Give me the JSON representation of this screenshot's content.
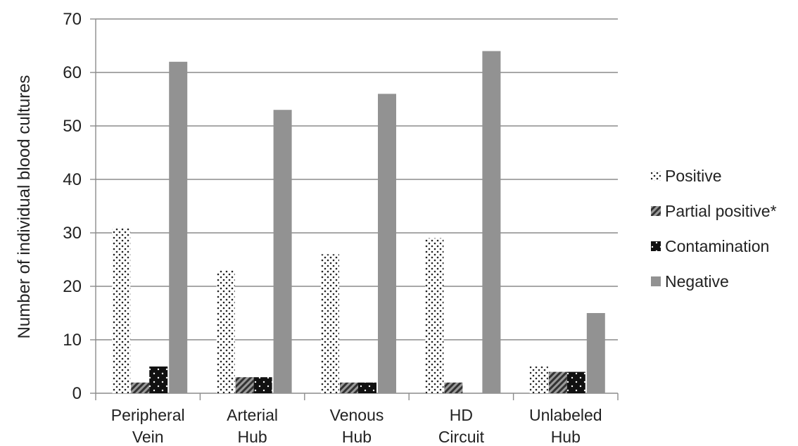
{
  "chart_data": {
    "type": "bar",
    "categories": [
      [
        "Peripheral",
        "Vein"
      ],
      [
        "Arterial",
        "Hub"
      ],
      [
        "Venous",
        "Hub"
      ],
      [
        "HD",
        "Circuit"
      ],
      [
        "Unlabeled",
        "Hub"
      ]
    ],
    "series": [
      {
        "name": "Positive",
        "values": [
          31,
          23,
          26,
          29,
          5
        ],
        "pattern": "dots",
        "color": "#ffffff"
      },
      {
        "name": "Partial positive*",
        "values": [
          2,
          3,
          2,
          2,
          4
        ],
        "pattern": "hatch",
        "color": "#666666"
      },
      {
        "name": "Contamination",
        "values": [
          5,
          3,
          2,
          0,
          4
        ],
        "pattern": "dark-dots",
        "color": "#111111"
      },
      {
        "name": "Negative",
        "values": [
          62,
          53,
          56,
          64,
          15
        ],
        "pattern": "solid",
        "color": "#929292"
      }
    ],
    "xlabel": "",
    "ylabel": "Number of individual blood cultures",
    "ylim": [
      0,
      70
    ],
    "yticks": [
      0,
      10,
      20,
      30,
      40,
      50,
      60,
      70
    ],
    "grid": true,
    "legend_position": "right"
  }
}
